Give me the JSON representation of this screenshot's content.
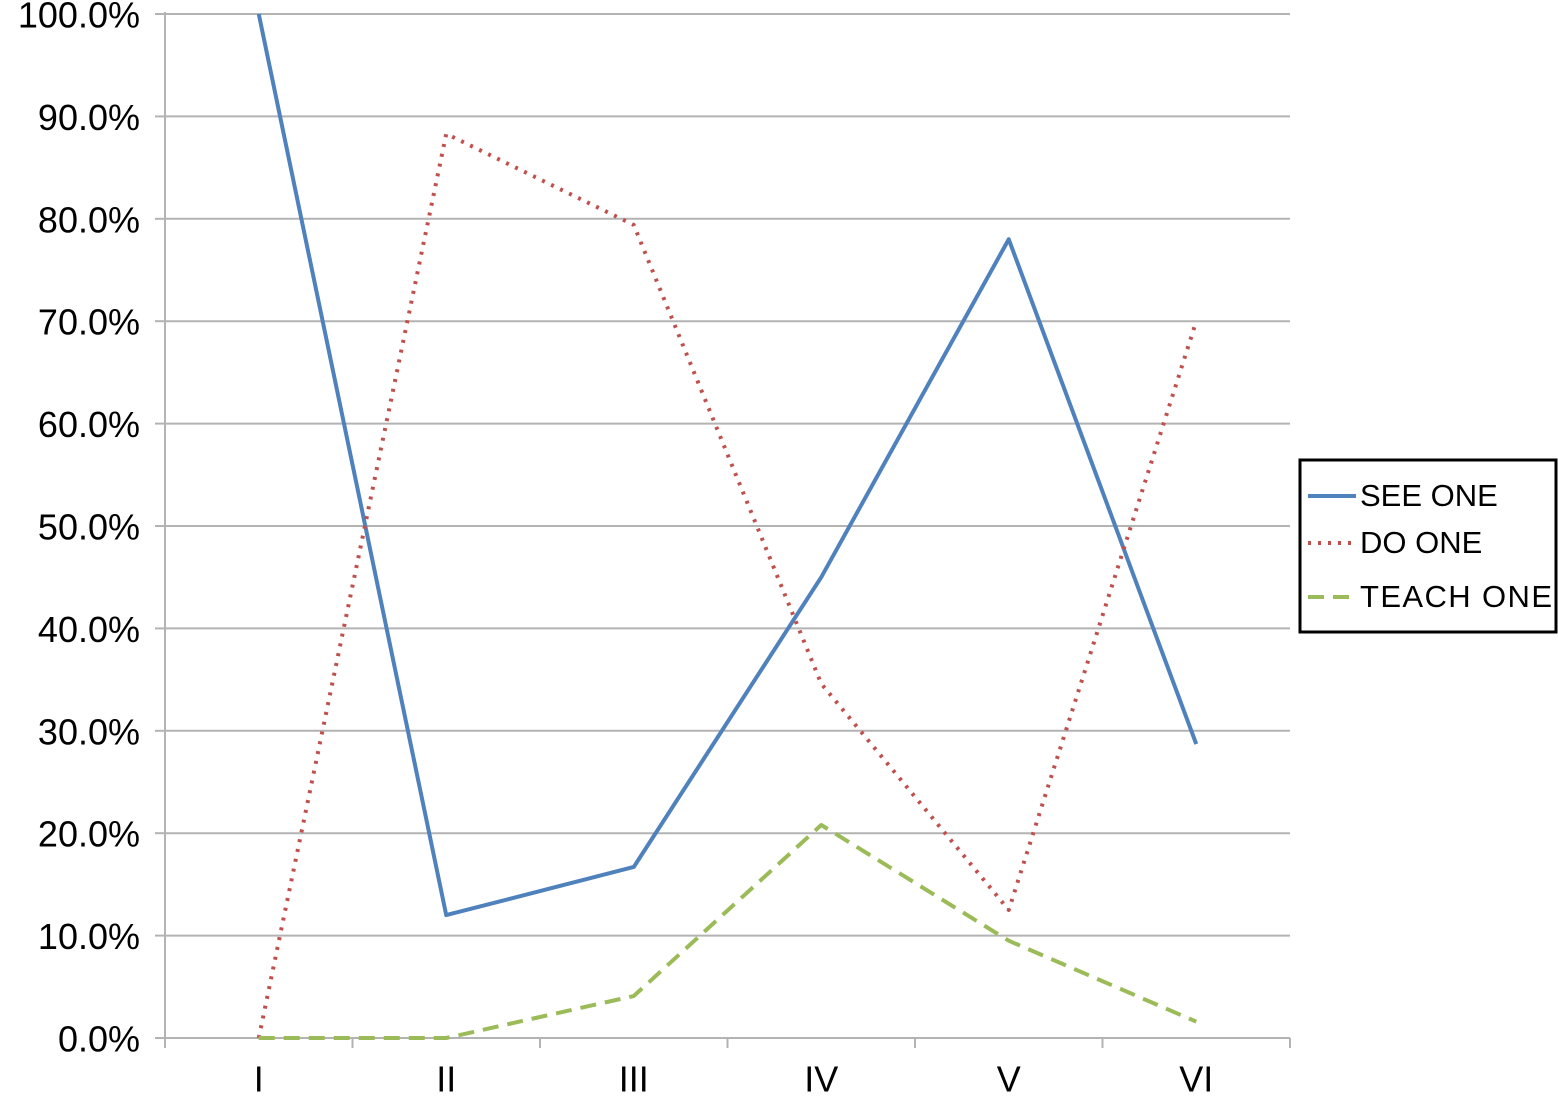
{
  "chart_data": {
    "type": "line",
    "categories": [
      "I",
      "II",
      "III",
      "IV",
      "V",
      "VI"
    ],
    "series": [
      {
        "name": "SEE ONE",
        "color": "#4f81bd",
        "style": "solid",
        "values": [
          100,
          12,
          16.7,
          45,
          78,
          28.7
        ]
      },
      {
        "name": "DO ONE",
        "color": "#c0504d",
        "style": "dotted",
        "values": [
          0,
          88.3,
          79.4,
          34.6,
          12.5,
          70
        ]
      },
      {
        "name": "TEACH ONE",
        "color": "#9bbb59",
        "style": "dashed",
        "values": [
          0,
          0,
          4.1,
          20.8,
          9.5,
          1.6
        ]
      }
    ],
    "ylim": [
      0,
      100
    ],
    "yticks": [
      {
        "value": 0,
        "label": "0.0%"
      },
      {
        "value": 10,
        "label": "10.0%"
      },
      {
        "value": 20,
        "label": "20.0%"
      },
      {
        "value": 30,
        "label": "30.0%"
      },
      {
        "value": 40,
        "label": "40.0%"
      },
      {
        "value": 50,
        "label": "50.0%"
      },
      {
        "value": 60,
        "label": "60.0%"
      },
      {
        "value": 70,
        "label": "70.0%"
      },
      {
        "value": 80,
        "label": "80.0%"
      },
      {
        "value": 90,
        "label": "90.0%"
      },
      {
        "value": 100,
        "label": "100.0%"
      }
    ],
    "grid": true,
    "legend": "right"
  }
}
